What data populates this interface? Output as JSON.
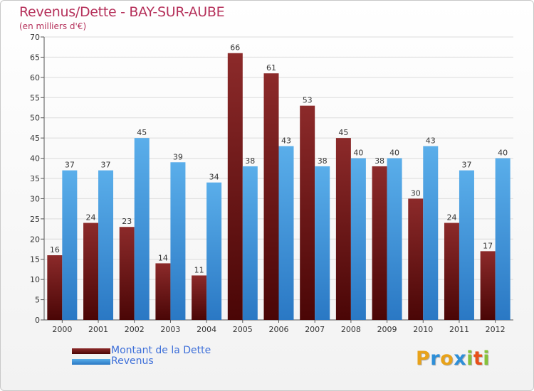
{
  "chart_data": {
    "type": "bar",
    "title": "Revenus/Dette - BAY-SUR-AUBE",
    "subtitle": "(en milliers d'€)",
    "categories": [
      "2000",
      "2001",
      "2002",
      "2003",
      "2004",
      "2005",
      "2006",
      "2007",
      "2008",
      "2009",
      "2010",
      "2011",
      "2012"
    ],
    "series": [
      {
        "name": "Montant de la Dette",
        "values": [
          16,
          24,
          23,
          14,
          11,
          66,
          61,
          53,
          45,
          38,
          30,
          24,
          17
        ],
        "color": "#7a1a1a"
      },
      {
        "name": "Revenus",
        "values": [
          37,
          37,
          45,
          39,
          34,
          38,
          43,
          38,
          40,
          40,
          43,
          37,
          40
        ],
        "color": "#3a8fdc"
      }
    ],
    "ylim": [
      0,
      70
    ],
    "yticks": [
      0,
      5,
      10,
      15,
      20,
      25,
      30,
      35,
      40,
      45,
      50,
      55,
      60,
      65,
      70
    ],
    "grid": true,
    "legend_position": "bottom-left",
    "data_labels": true
  },
  "logo": {
    "letters": [
      "P",
      "r",
      "o",
      "x",
      "i",
      "t",
      "i"
    ],
    "colors": [
      "#e8a21a",
      "#2e8fd8",
      "#e8a21a",
      "#2e8fd8",
      "#86c23a",
      "#e8501a",
      "#86c23a"
    ]
  }
}
